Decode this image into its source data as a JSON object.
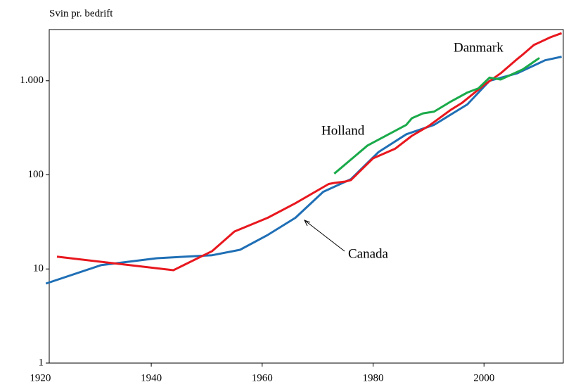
{
  "chart_data": {
    "type": "line",
    "log_y": true,
    "ylabel": "Svin pr. bedrift",
    "annotations": [
      "Danmark",
      "Holland",
      "Canada"
    ],
    "xlim": [
      1921.6,
      2014.3
    ],
    "xticks": [
      1920,
      1940,
      1960,
      1980,
      2000
    ],
    "ylim": [
      1,
      3500
    ],
    "yticks": [
      1,
      10,
      100,
      {
        "value": 1000,
        "label": "1.000"
      }
    ],
    "series": [
      {
        "name": "Canada",
        "color": "#1f6fb5",
        "x": [
          1921,
          1931,
          1941,
          1951,
          1956,
          1961,
          1966,
          1971,
          1976,
          1981,
          1986,
          1991,
          1997,
          2001,
          2006,
          2011,
          2013,
          2014
        ],
        "values": [
          7,
          11,
          13,
          14,
          16,
          23,
          35,
          66,
          90,
          175,
          270,
          340,
          560,
          1000,
          1200,
          1650,
          1750,
          1800
        ]
      },
      {
        "name": "Danmark",
        "color": "#e8171e",
        "x": [
          1923,
          1944,
          1951,
          1955,
          1961,
          1966,
          1972,
          1973,
          1975,
          1976,
          1980,
          1984,
          1987,
          1990,
          1994,
          1996,
          2000,
          2003,
          2006,
          2007,
          2009,
          2012,
          2014
        ],
        "values": [
          13.5,
          9.7,
          15.5,
          25,
          35,
          50,
          80,
          82,
          85,
          88,
          150,
          190,
          260,
          330,
          490,
          580,
          900,
          1200,
          1700,
          1900,
          2400,
          2900,
          3200
        ]
      },
      {
        "name": "Holland",
        "color": "#1aaa4a",
        "x": [
          1973,
          1979,
          1986,
          1987,
          1989,
          1991,
          1994,
          1997,
          1999,
          2001,
          2003,
          2007,
          2010
        ],
        "values": [
          103,
          205,
          340,
          400,
          450,
          470,
          600,
          750,
          830,
          1080,
          1030,
          1320,
          1750
        ]
      }
    ]
  }
}
